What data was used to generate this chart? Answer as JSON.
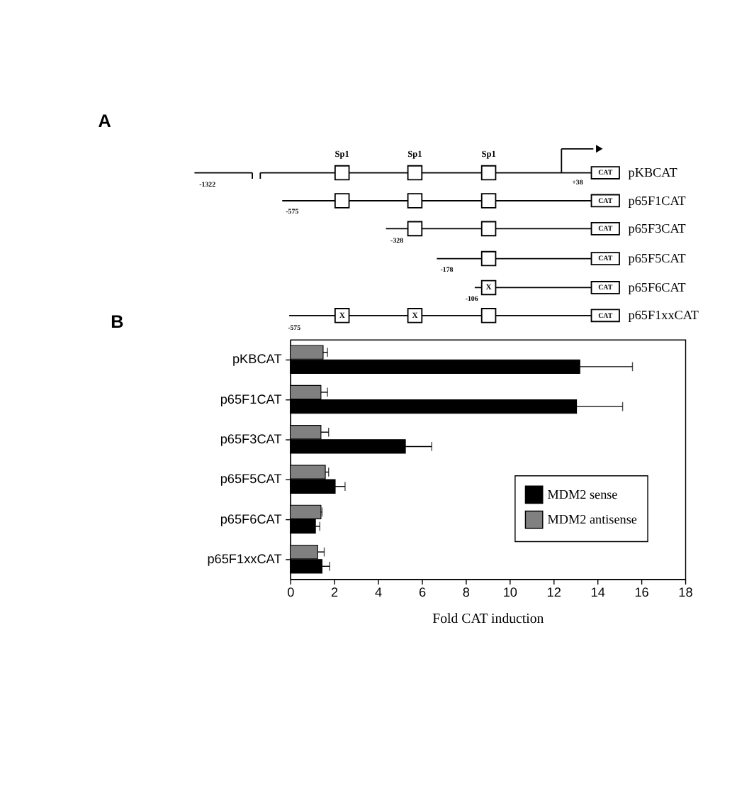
{
  "chart_data": [
    {
      "type": "other",
      "title": "A",
      "annotations": [
        "Sp1",
        "Sp1",
        "Sp1",
        "-1322",
        "+38",
        "-575",
        "-328",
        "-178",
        "-106",
        "-575",
        "CAT",
        "CAT",
        "CAT",
        "CAT",
        "CAT",
        "CAT",
        "pKBCAT",
        "p65F1CAT",
        "p65F3CAT",
        "p65F5CAT",
        "p65F6CAT",
        "p65F1xxCAT",
        "X",
        "X",
        "X"
      ]
    },
    {
      "type": "bar",
      "orientation": "horizontal",
      "title": "B",
      "xlabel": "Fold CAT induction",
      "categories": [
        "pKBCAT",
        "p65F1CAT",
        "p65F3CAT",
        "p65F5CAT",
        "p65F6CAT",
        "p65F1xxCAT"
      ],
      "series": [
        {
          "name": "MDM2 sense",
          "color": "#000000",
          "values": [
            13.2,
            13.05,
            5.25,
            2.05,
            1.15,
            1.45
          ],
          "errors": [
            [
              13.2,
              15.6
            ],
            [
              13.05,
              15.15
            ],
            [
              5.25,
              6.45
            ],
            [
              2.05,
              2.5
            ],
            [
              1.15,
              1.35
            ],
            [
              1.45,
              1.8
            ]
          ]
        },
        {
          "name": "MDM2 antisense",
          "color": "#808080",
          "values": [
            1.5,
            1.4,
            1.4,
            1.6,
            1.4,
            1.25
          ],
          "errors": [
            [
              1.5,
              1.7
            ],
            [
              1.4,
              1.7
            ],
            [
              1.4,
              1.75
            ],
            [
              1.6,
              1.75
            ],
            [
              1.4,
              1.45
            ],
            [
              1.25,
              1.55
            ]
          ]
        }
      ],
      "xlim": [
        0,
        18
      ],
      "xticks": [
        0,
        2,
        4,
        6,
        8,
        10,
        12,
        14,
        16,
        18
      ],
      "grid": false,
      "legend": "bottom right"
    }
  ]
}
